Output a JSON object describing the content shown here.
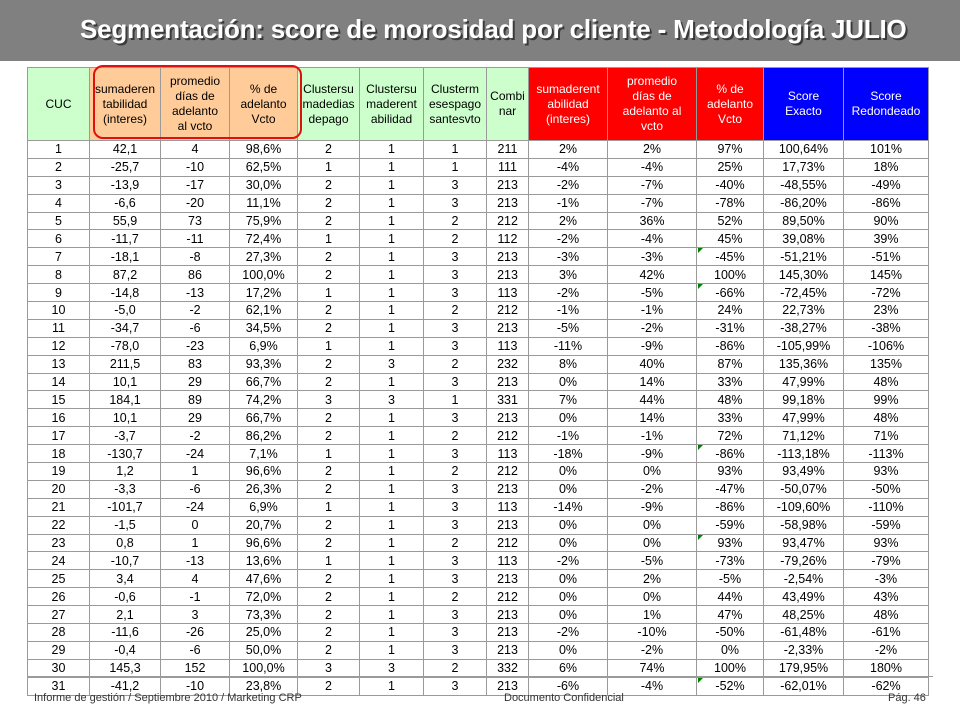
{
  "title": "Segmentación: score de morosidad por cliente - Metodología JULIO",
  "headers": [
    {
      "lines": [
        "CUC"
      ],
      "style": "plain"
    },
    {
      "lines": [
        "sumaderen",
        "tabilidad",
        "(interes)"
      ],
      "style": "orange"
    },
    {
      "lines": [
        "promedio",
        "días de",
        "adelanto",
        "al vcto"
      ],
      "style": "orange"
    },
    {
      "lines": [
        "% de",
        "adelanto",
        "Vcto"
      ],
      "style": "orange"
    },
    {
      "lines": [
        "Clustersu",
        "madedias",
        "depago"
      ],
      "style": "plain"
    },
    {
      "lines": [
        "Clustersu",
        "maderent",
        "abilidad"
      ],
      "style": "plain"
    },
    {
      "lines": [
        "Clusterm",
        "esespago",
        "santesvto"
      ],
      "style": "plain"
    },
    {
      "lines": [
        "Combi",
        "nar"
      ],
      "style": "plain"
    },
    {
      "lines": [
        "sumaderent",
        "abilidad",
        "(interes)"
      ],
      "style": "red"
    },
    {
      "lines": [
        "promedio",
        "días de",
        "adelanto al",
        "vcto"
      ],
      "style": "red"
    },
    {
      "lines": [
        "% de",
        "adelanto",
        "Vcto"
      ],
      "style": "red"
    },
    {
      "lines": [
        "Score",
        "Exacto"
      ],
      "style": "blue"
    },
    {
      "lines": [
        "Score",
        "Redondeado"
      ],
      "style": "blue"
    }
  ],
  "rows": [
    [
      "1",
      "42,1",
      "4",
      "98,6%",
      "2",
      "1",
      "1",
      "211",
      "2%",
      "2%",
      "97%",
      "100,64%",
      "101%"
    ],
    [
      "2",
      "-25,7",
      "-10",
      "62,5%",
      "1",
      "1",
      "1",
      "111",
      "-4%",
      "-4%",
      "25%",
      "17,73%",
      "18%"
    ],
    [
      "3",
      "-13,9",
      "-17",
      "30,0%",
      "2",
      "1",
      "3",
      "213",
      "-2%",
      "-7%",
      "-40%",
      "-48,55%",
      "-49%"
    ],
    [
      "4",
      "-6,6",
      "-20",
      "11,1%",
      "2",
      "1",
      "3",
      "213",
      "-1%",
      "-7%",
      "-78%",
      "-86,20%",
      "-86%"
    ],
    [
      "5",
      "55,9",
      "73",
      "75,9%",
      "2",
      "1",
      "2",
      "212",
      "2%",
      "36%",
      "52%",
      "89,50%",
      "90%"
    ],
    [
      "6",
      "-11,7",
      "-11",
      "72,4%",
      "1",
      "1",
      "2",
      "112",
      "-2%",
      "-4%",
      "45%",
      "39,08%",
      "39%"
    ],
    [
      "7",
      "-18,1",
      "-8",
      "27,3%",
      "2",
      "1",
      "3",
      "213",
      "-3%",
      "-3%",
      "-45%",
      "-51,21%",
      "-51%"
    ],
    [
      "8",
      "87,2",
      "86",
      "100,0%",
      "2",
      "1",
      "3",
      "213",
      "3%",
      "42%",
      "100%",
      "145,30%",
      "145%"
    ],
    [
      "9",
      "-14,8",
      "-13",
      "17,2%",
      "1",
      "1",
      "3",
      "113",
      "-2%",
      "-5%",
      "-66%",
      "-72,45%",
      "-72%"
    ],
    [
      "10",
      "-5,0",
      "-2",
      "62,1%",
      "2",
      "1",
      "2",
      "212",
      "-1%",
      "-1%",
      "24%",
      "22,73%",
      "23%"
    ],
    [
      "11",
      "-34,7",
      "-6",
      "34,5%",
      "2",
      "1",
      "3",
      "213",
      "-5%",
      "-2%",
      "-31%",
      "-38,27%",
      "-38%"
    ],
    [
      "12",
      "-78,0",
      "-23",
      "6,9%",
      "1",
      "1",
      "3",
      "113",
      "-11%",
      "-9%",
      "-86%",
      "-105,99%",
      "-106%"
    ],
    [
      "13",
      "211,5",
      "83",
      "93,3%",
      "2",
      "3",
      "2",
      "232",
      "8%",
      "40%",
      "87%",
      "135,36%",
      "135%"
    ],
    [
      "14",
      "10,1",
      "29",
      "66,7%",
      "2",
      "1",
      "3",
      "213",
      "0%",
      "14%",
      "33%",
      "47,99%",
      "48%"
    ],
    [
      "15",
      "184,1",
      "89",
      "74,2%",
      "3",
      "3",
      "1",
      "331",
      "7%",
      "44%",
      "48%",
      "99,18%",
      "99%"
    ],
    [
      "16",
      "10,1",
      "29",
      "66,7%",
      "2",
      "1",
      "3",
      "213",
      "0%",
      "14%",
      "33%",
      "47,99%",
      "48%"
    ],
    [
      "17",
      "-3,7",
      "-2",
      "86,2%",
      "2",
      "1",
      "2",
      "212",
      "-1%",
      "-1%",
      "72%",
      "71,12%",
      "71%"
    ],
    [
      "18",
      "-130,7",
      "-24",
      "7,1%",
      "1",
      "1",
      "3",
      "113",
      "-18%",
      "-9%",
      "-86%",
      "-113,18%",
      "-113%"
    ],
    [
      "19",
      "1,2",
      "1",
      "96,6%",
      "2",
      "1",
      "2",
      "212",
      "0%",
      "0%",
      "93%",
      "93,49%",
      "93%"
    ],
    [
      "20",
      "-3,3",
      "-6",
      "26,3%",
      "2",
      "1",
      "3",
      "213",
      "0%",
      "-2%",
      "-47%",
      "-50,07%",
      "-50%"
    ],
    [
      "21",
      "-101,7",
      "-24",
      "6,9%",
      "1",
      "1",
      "3",
      "113",
      "-14%",
      "-9%",
      "-86%",
      "-109,60%",
      "-110%"
    ],
    [
      "22",
      "-1,5",
      "0",
      "20,7%",
      "2",
      "1",
      "3",
      "213",
      "0%",
      "0%",
      "-59%",
      "-58,98%",
      "-59%"
    ],
    [
      "23",
      "0,8",
      "1",
      "96,6%",
      "2",
      "1",
      "2",
      "212",
      "0%",
      "0%",
      "93%",
      "93,47%",
      "93%"
    ],
    [
      "24",
      "-10,7",
      "-13",
      "13,6%",
      "1",
      "1",
      "3",
      "113",
      "-2%",
      "-5%",
      "-73%",
      "-79,26%",
      "-79%"
    ],
    [
      "25",
      "3,4",
      "4",
      "47,6%",
      "2",
      "1",
      "3",
      "213",
      "0%",
      "2%",
      "-5%",
      "-2,54%",
      "-3%"
    ],
    [
      "26",
      "-0,6",
      "-1",
      "72,0%",
      "2",
      "1",
      "2",
      "212",
      "0%",
      "0%",
      "44%",
      "43,49%",
      "43%"
    ],
    [
      "27",
      "2,1",
      "3",
      "73,3%",
      "2",
      "1",
      "3",
      "213",
      "0%",
      "1%",
      "47%",
      "48,25%",
      "48%"
    ],
    [
      "28",
      "-11,6",
      "-26",
      "25,0%",
      "2",
      "1",
      "3",
      "213",
      "-2%",
      "-10%",
      "-50%",
      "-61,48%",
      "-61%"
    ],
    [
      "29",
      "-0,4",
      "-6",
      "50,0%",
      "2",
      "1",
      "3",
      "213",
      "0%",
      "-2%",
      "0%",
      "-2,33%",
      "-2%"
    ],
    [
      "30",
      "145,3",
      "152",
      "100,0%",
      "3",
      "3",
      "2",
      "332",
      "6%",
      "74%",
      "100%",
      "179,95%",
      "180%"
    ],
    [
      "31",
      "-41,2",
      "-10",
      "23,8%",
      "2",
      "1",
      "3",
      "213",
      "-6%",
      "-4%",
      "-52%",
      "-62,01%",
      "-62%"
    ]
  ],
  "marked_rows": [
    7,
    9,
    18,
    23,
    31
  ],
  "colors": {
    "plain": "#ccffcc",
    "orange": "#ffcc99",
    "red": "#ff0000",
    "blue": "#0000ff",
    "frame": "#e01010",
    "title_bar": "#808080"
  },
  "footer": {
    "left": "Informe de gestión / Septiembre 2010 / Marketing CRP",
    "center": "Documento Confidencial",
    "right": "Pág. 46"
  }
}
